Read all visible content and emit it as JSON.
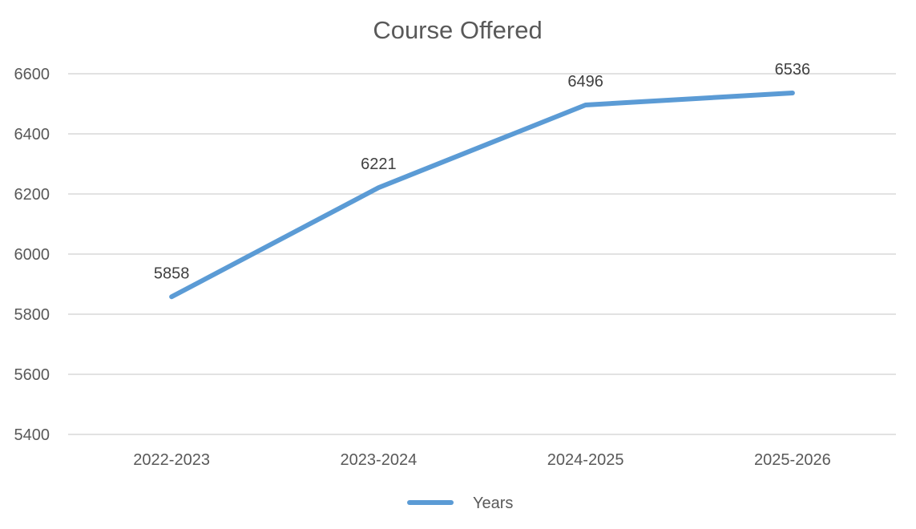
{
  "chart_data": {
    "type": "line",
    "title": "Course Offered",
    "xlabel": "",
    "ylabel": "",
    "categories": [
      "2022-2023",
      "2023-2024",
      "2024-2025",
      "2025-2026"
    ],
    "series": [
      {
        "name": "Years",
        "values": [
          5858,
          6221,
          6496,
          6536
        ],
        "color": "#5b9bd5"
      }
    ],
    "ylim": [
      5400,
      6600
    ],
    "yticks": [
      5400,
      5600,
      5800,
      6000,
      6200,
      6400,
      6600
    ],
    "grid": true,
    "legend": "bottom",
    "data_labels": true
  }
}
